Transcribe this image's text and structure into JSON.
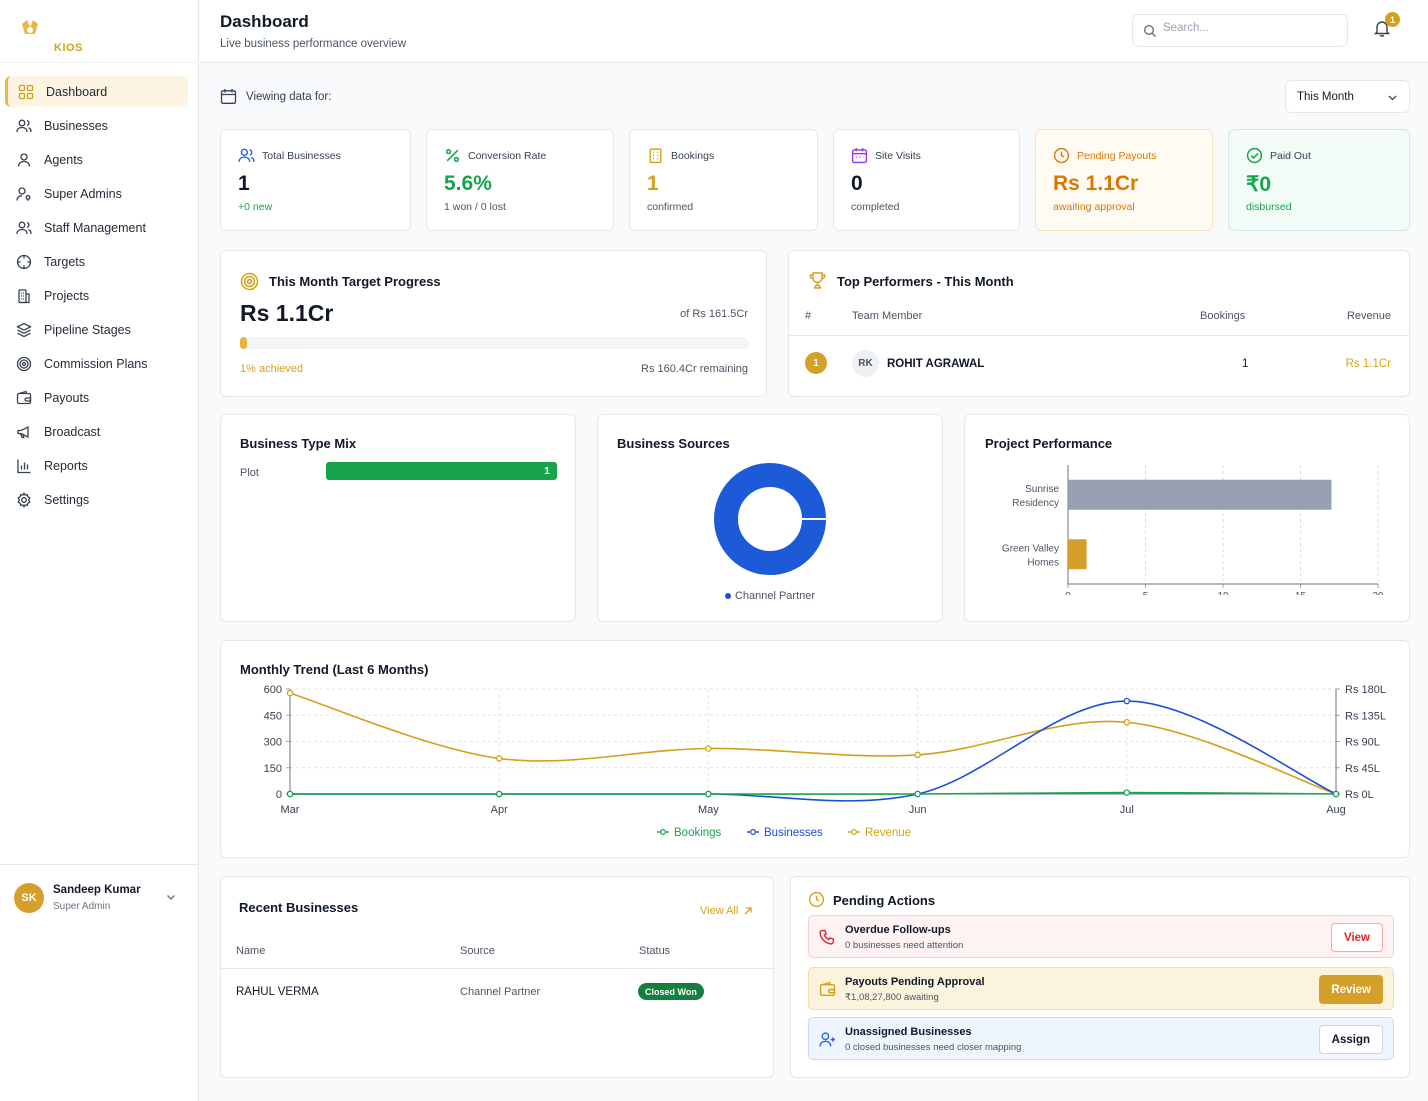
{
  "app": {
    "logo_text": "KIOS"
  },
  "sidebar": {
    "items": [
      {
        "label": "Dashboard",
        "icon": "dashboard-icon"
      },
      {
        "label": "Businesses",
        "icon": "users-icon"
      },
      {
        "label": "Agents",
        "icon": "user-icon"
      },
      {
        "label": "Super Admins",
        "icon": "user-key-icon"
      },
      {
        "label": "Staff Management",
        "icon": "users-icon"
      },
      {
        "label": "Targets",
        "icon": "crosshair-icon"
      },
      {
        "label": "Projects",
        "icon": "building-icon"
      },
      {
        "label": "Pipeline Stages",
        "icon": "layers-icon"
      },
      {
        "label": "Commission Plans",
        "icon": "target-icon"
      },
      {
        "label": "Payouts",
        "icon": "wallet-icon"
      },
      {
        "label": "Broadcast",
        "icon": "megaphone-icon"
      },
      {
        "label": "Reports",
        "icon": "bar-chart-icon"
      },
      {
        "label": "Settings",
        "icon": "gear-icon"
      }
    ],
    "active_index": 0,
    "user": {
      "initials": "SK",
      "name": "Sandeep Kumar",
      "role": "Super Admin"
    }
  },
  "header": {
    "title": "Dashboard",
    "subtitle": "Live business performance overview",
    "search_placeholder": "Search...",
    "notification_count": "1"
  },
  "filters": {
    "viewing_label": "Viewing data for:",
    "period": "This Month"
  },
  "stats": [
    {
      "label": "Total Businesses",
      "value": "1",
      "sub": "+0 new",
      "value_color": "#111827",
      "sub_color": "#16a34a",
      "icon": "users-icon",
      "icon_color": "#2563eb"
    },
    {
      "label": "Conversion Rate",
      "value": "5.6%",
      "sub": "1 won / 0 lost",
      "value_color": "#16a34a",
      "sub_color": "#4b5563",
      "icon": "percent-icon",
      "icon_color": "#16a34a"
    },
    {
      "label": "Bookings",
      "value": "1",
      "sub": "confirmed",
      "value_color": "#d4a017",
      "sub_color": "#4b5563",
      "icon": "building-icon",
      "icon_color": "#d4a017"
    },
    {
      "label": "Site Visits",
      "value": "0",
      "sub": "completed",
      "value_color": "#111827",
      "sub_color": "#4b5563",
      "icon": "calendar-icon",
      "icon_color": "#9333ea"
    },
    {
      "label": "Pending Payouts",
      "value": "Rs 1.1Cr",
      "sub": "awaiting approval",
      "value_color": "#d97706",
      "sub_color": "#d97706",
      "icon": "clock-icon",
      "icon_color": "#d97706"
    },
    {
      "label": "Paid Out",
      "value": "₹0",
      "sub": "disbursed",
      "value_color": "#16a34a",
      "sub_color": "#16a34a",
      "icon": "check-circle-icon",
      "icon_color": "#16a34a"
    }
  ],
  "target_progress": {
    "title": "This Month Target Progress",
    "achieved_value": "Rs 1.1Cr",
    "target_text": "of Rs 161.5Cr",
    "achieved_text": "1% achieved",
    "remaining_text": "Rs 160.4Cr remaining",
    "progress_fraction": 0.011
  },
  "top_performers": {
    "title": "Top Performers - This Month",
    "columns": {
      "rank": "#",
      "member": "Team Member",
      "bookings": "Bookings",
      "revenue": "Revenue"
    },
    "rows": [
      {
        "rank": "1",
        "initials": "RK",
        "name": "ROHIT AGRAWAL",
        "bookings": "1",
        "revenue": "Rs 1.1Cr"
      }
    ]
  },
  "business_type_mix": {
    "title": "Business Type Mix",
    "items": [
      {
        "label": "Plot",
        "value": "1"
      }
    ]
  },
  "business_sources": {
    "title": "Business Sources",
    "legend": [
      {
        "label": "Channel Partner",
        "color": "#1d4ed8"
      }
    ]
  },
  "chart_data": [
    {
      "type": "bar",
      "orientation": "horizontal",
      "title": "Project Performance",
      "categories": [
        "Sunrise Residency",
        "Green Valley Homes"
      ],
      "values": [
        17,
        1.2
      ],
      "colors": [
        "#97a0b3",
        "#d4a02a"
      ],
      "xlim": [
        0,
        20
      ],
      "xticks": [
        "0",
        "5",
        "10",
        "15",
        "20"
      ],
      "grid": true
    },
    {
      "type": "line",
      "title": "Monthly Trend (Last 6 Months)",
      "x": [
        "Mar",
        "Apr",
        "May",
        "Jun",
        "Jul",
        "Aug"
      ],
      "left_axis": {
        "ticks": [
          "0",
          "150",
          "300",
          "450",
          "600"
        ],
        "ylim": [
          0,
          600
        ]
      },
      "right_axis": {
        "ticks": [
          "Rs 0L",
          "Rs 45L",
          "Rs 90L",
          "Rs 135L",
          "Rs 180L"
        ],
        "ylim": [
          0,
          180
        ]
      },
      "series": [
        {
          "name": "Bookings",
          "axis": "left",
          "color": "#16a34a",
          "values": [
            0,
            0,
            0,
            0,
            8,
            0
          ]
        },
        {
          "name": "Businesses",
          "axis": "left",
          "color": "#1d4ed8",
          "values": [
            0,
            0,
            0,
            0,
            531,
            0
          ]
        },
        {
          "name": "Revenue",
          "axis": "right",
          "color": "#d4a017",
          "values": [
            173,
            61,
            78,
            67,
            123,
            0
          ]
        }
      ],
      "grid": true,
      "legend_position": "bottom"
    }
  ],
  "recent_businesses": {
    "title": "Recent Businesses",
    "view_all": "View All",
    "columns": {
      "name": "Name",
      "source": "Source",
      "status": "Status"
    },
    "rows": [
      {
        "name": "RAHUL VERMA",
        "source": "Channel Partner",
        "status": "Closed Won"
      }
    ]
  },
  "pending_actions": {
    "title": "Pending Actions",
    "items": [
      {
        "title": "Overdue Follow-ups",
        "sub": "0 businesses need attention",
        "button": "View",
        "icon": "phone-icon"
      },
      {
        "title": "Payouts Pending Approval",
        "sub": "₹1,08,27,800 awaiting",
        "button": "Review",
        "icon": "wallet-icon"
      },
      {
        "title": "Unassigned Businesses",
        "sub": "0 closed businesses need closer mapping",
        "button": "Assign",
        "icon": "user-plus-icon"
      }
    ]
  }
}
